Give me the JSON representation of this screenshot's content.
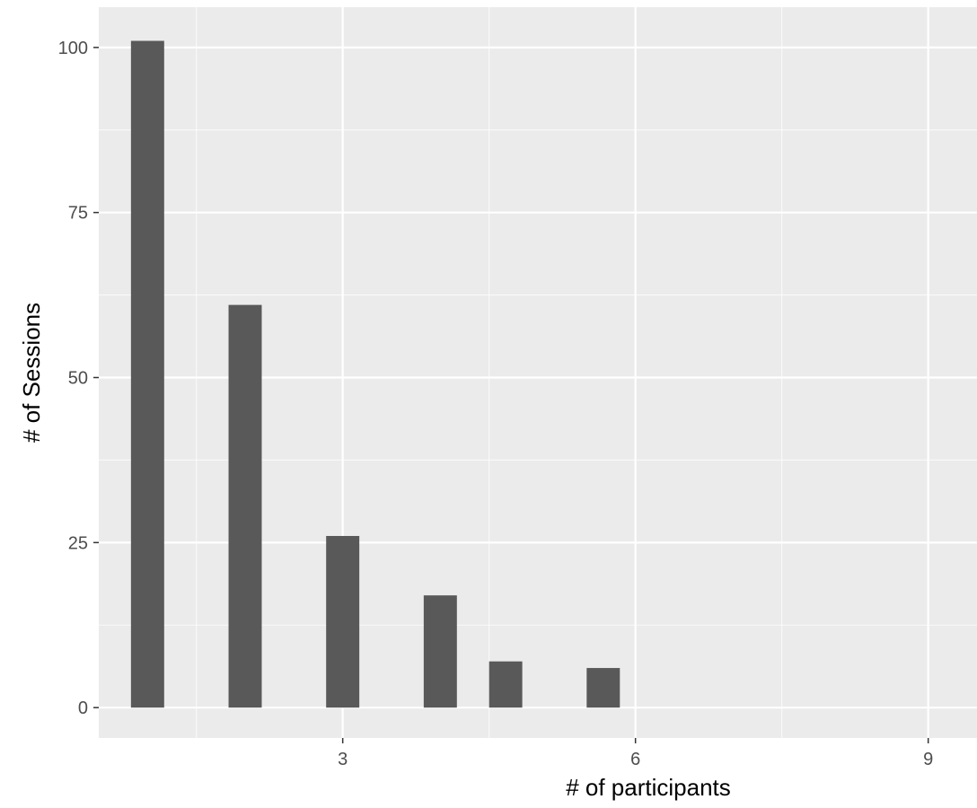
{
  "chart_data": {
    "type": "bar",
    "title": "",
    "xlabel": "# of participants",
    "ylabel": "# of Sessions",
    "x": [
      1,
      2,
      3,
      4,
      4.67,
      5.67
    ],
    "values": [
      101,
      61,
      26,
      17,
      7,
      6
    ],
    "xlim": [
      0.5,
      9.5
    ],
    "ylim": [
      -4.6,
      106.1
    ],
    "xticks": [
      3,
      6,
      9
    ],
    "yticks": [
      0,
      25,
      50,
      75,
      100
    ],
    "bar_width": 0.34,
    "grid": true,
    "legend": "none",
    "colors": {
      "bar": "#595959",
      "panel": "#ebebeb",
      "grid_major": "#ffffff",
      "tick_label": "#4d4d4d",
      "axis_title": "#000000"
    }
  }
}
